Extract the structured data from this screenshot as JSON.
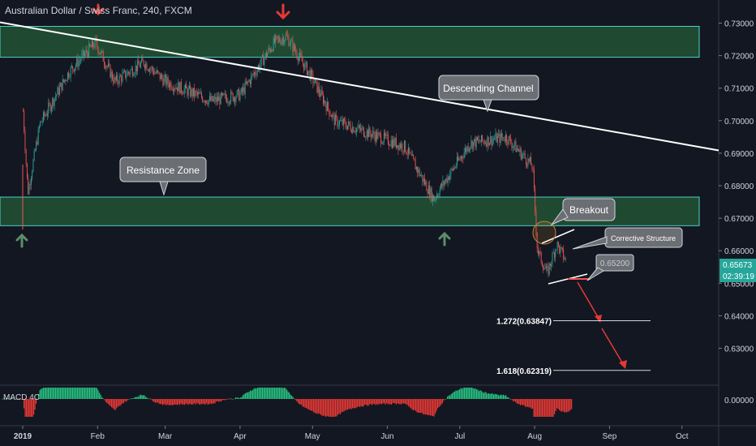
{
  "symbol_title": "Australian Dollar / Swiss Franc, 240, FXCM",
  "colors": {
    "background": "#131722",
    "up": "#26a69a",
    "down": "#ef5350",
    "zone_fill": "#1f4a31",
    "zone_border": "#4dd0c4",
    "trendline": "#ffffff",
    "callout_bg": "#6b6e73",
    "arrow_up": "#5e8c6a",
    "arrow_down": "#e53935",
    "price_badge": "#26a69a"
  },
  "callouts": {
    "descending_channel": "Descending Channel",
    "resistance_zone": "Resistance Zone",
    "breakout": "Breakout",
    "corrective_structure": "Corrective Structure",
    "target_price": "0.65200"
  },
  "fib_levels": [
    {
      "label": "1.272(0.63847)",
      "price": 0.63847
    },
    {
      "label": "1.618(0.62319)",
      "price": 0.62319
    }
  ],
  "current_price": "0.65673",
  "countdown": "02:39:19",
  "macd_label": "MACD 4C",
  "macd_zero": "0.00000",
  "chart_data": {
    "type": "candlestick",
    "title": "Australian Dollar / Swiss Franc, 240, FXCM",
    "y_ticks": [
      "0.73000",
      "0.72000",
      "0.71000",
      "0.70000",
      "0.69000",
      "0.68000",
      "0.67000",
      "0.66000",
      "0.65000",
      "0.64000",
      "0.63000"
    ],
    "ylim": [
      0.6195,
      0.734
    ],
    "x_ticks": [
      "2019",
      "Feb",
      "Mar",
      "Apr",
      "May",
      "Jun",
      "Jul",
      "Aug",
      "Sep",
      "Oct"
    ],
    "price_path": [
      {
        "date": "2019-01-01",
        "price": 0.703
      },
      {
        "date": "2019-01-03",
        "price": 0.678
      },
      {
        "date": "2019-01-08",
        "price": 0.699
      },
      {
        "date": "2019-01-20",
        "price": 0.715
      },
      {
        "date": "2019-01-31",
        "price": 0.724
      },
      {
        "date": "2019-02-08",
        "price": 0.712
      },
      {
        "date": "2019-02-20",
        "price": 0.718
      },
      {
        "date": "2019-03-01",
        "price": 0.712
      },
      {
        "date": "2019-03-20",
        "price": 0.706
      },
      {
        "date": "2019-04-01",
        "price": 0.708
      },
      {
        "date": "2019-04-15",
        "price": 0.724
      },
      {
        "date": "2019-04-20",
        "price": 0.726
      },
      {
        "date": "2019-04-30",
        "price": 0.714
      },
      {
        "date": "2019-05-10",
        "price": 0.7
      },
      {
        "date": "2019-05-25",
        "price": 0.696
      },
      {
        "date": "2019-06-08",
        "price": 0.692
      },
      {
        "date": "2019-06-20",
        "price": 0.676
      },
      {
        "date": "2019-07-05",
        "price": 0.693
      },
      {
        "date": "2019-07-20",
        "price": 0.695
      },
      {
        "date": "2019-07-31",
        "price": 0.686
      },
      {
        "date": "2019-08-02",
        "price": 0.66
      },
      {
        "date": "2019-08-06",
        "price": 0.653
      },
      {
        "date": "2019-08-10",
        "price": 0.662
      },
      {
        "date": "2019-08-14",
        "price": 0.6567
      }
    ],
    "zones": [
      {
        "name": "upper supply zone",
        "from": 0.7195,
        "to": 0.729
      },
      {
        "name": "Resistance Zone",
        "from": 0.6677,
        "to": 0.6765
      }
    ],
    "trendline": {
      "start": {
        "date": "2019-01-01",
        "price": 0.729
      },
      "end": {
        "date": "2019-10-15",
        "price": 0.691
      }
    },
    "grid": false,
    "macd_histogram": true
  }
}
